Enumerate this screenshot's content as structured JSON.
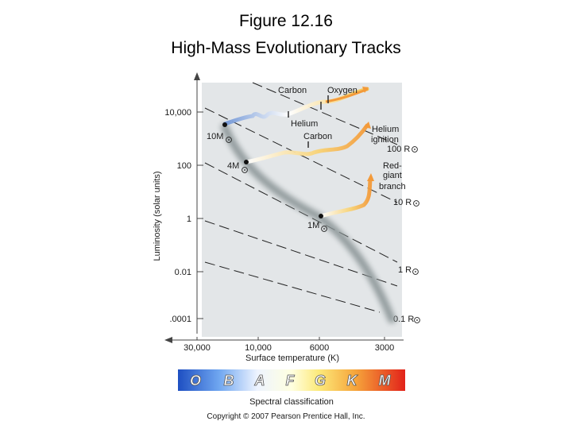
{
  "title": {
    "line1": "Figure 12.16",
    "line2": "High-Mass Evolutionary Tracks"
  },
  "diagram": {
    "y_axis_label": "Luminosity (solar units)",
    "x_axis_label": "Surface temperature (K)",
    "y_ticks": [
      "10,000",
      "100",
      "1",
      "0.01",
      ".0001"
    ],
    "x_ticks": [
      "30,000",
      "10,000",
      "6000",
      "3000"
    ],
    "radius_lines": [
      "100 R",
      "10 R",
      "1 R",
      "0.1 R"
    ],
    "stars": [
      "10M",
      "4M",
      "1M"
    ],
    "labels": {
      "carbon_top": "Carbon",
      "oxygen": "Oxygen",
      "helium": "Helium",
      "carbon_mid": "Carbon",
      "helium_ignition_1": "Helium",
      "helium_ignition_2": "ignition",
      "red_giant_1": "Red-",
      "red_giant_2": "giant",
      "red_giant_3": "branch"
    }
  },
  "spectral": {
    "classes": [
      "O",
      "B",
      "A",
      "F",
      "G",
      "K",
      "M"
    ],
    "label": "Spectral classification"
  },
  "copyright": "Copyright © 2007 Pearson Prentice Hall, Inc."
}
